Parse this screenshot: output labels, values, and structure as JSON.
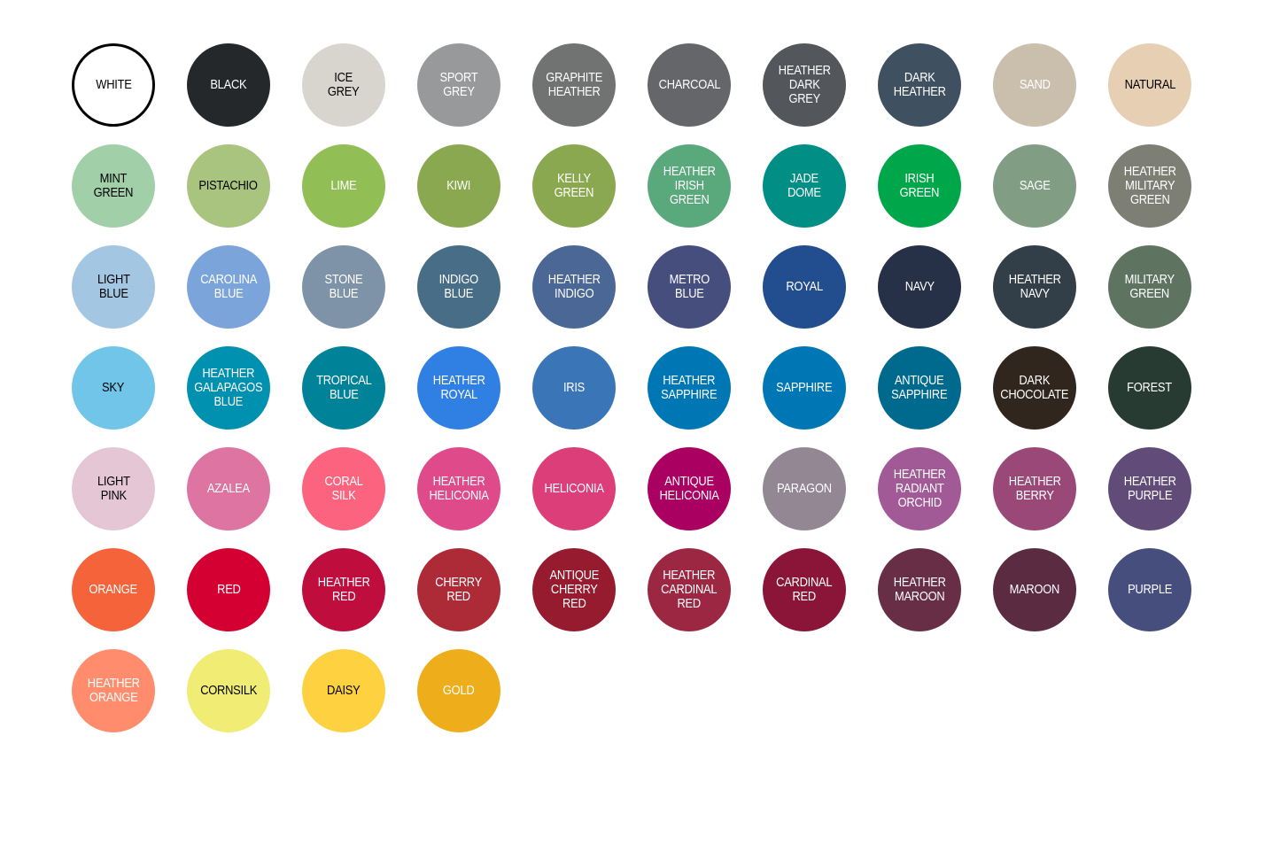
{
  "swatches": [
    {
      "label": "WHITE",
      "color": "#ffffff",
      "text": "#000000",
      "outline": "#000000"
    },
    {
      "label": "BLACK",
      "color": "#25282a",
      "text": "#ffffff"
    },
    {
      "label": "ICE\nGREY",
      "color": "#d8d4ce",
      "text": "#000000"
    },
    {
      "label": "SPORT\nGREY",
      "color": "#97999b",
      "text": "#ffffff"
    },
    {
      "label": "GRAPHITE\nHEATHER",
      "color": "#707372",
      "text": "#ffffff"
    },
    {
      "label": "CHARCOAL",
      "color": "#65666a",
      "text": "#ffffff"
    },
    {
      "label": "HEATHER\nDARK\nGREY",
      "color": "#53565b",
      "text": "#ffffff"
    },
    {
      "label": "DARK\nHEATHER",
      "color": "#3f5060",
      "text": "#ffffff"
    },
    {
      "label": "SAND",
      "color": "#cabfad",
      "text": "#ffffff"
    },
    {
      "label": "NATURAL",
      "color": "#e7cfb4",
      "text": "#000000"
    },
    {
      "label": "MINT\nGREEN",
      "color": "#a0cfa8",
      "text": "#000000"
    },
    {
      "label": "PISTACHIO",
      "color": "#a9c47f",
      "text": "#000000"
    },
    {
      "label": "LIME",
      "color": "#92bf55",
      "text": "#ffffff"
    },
    {
      "label": "KIWI",
      "color": "#89a84f",
      "text": "#ffffff"
    },
    {
      "label": "KELLY\nGREEN",
      "color": "#8aa84f",
      "text": "#ffffff"
    },
    {
      "label": "HEATHER\nIRISH\nGREEN",
      "color": "#5aa97c",
      "text": "#ffffff"
    },
    {
      "label": "JADE\nDOME",
      "color": "#008e85",
      "text": "#ffffff"
    },
    {
      "label": "IRISH\nGREEN",
      "color": "#00a74a",
      "text": "#ffffff"
    },
    {
      "label": "SAGE",
      "color": "#819e84",
      "text": "#ffffff"
    },
    {
      "label": "HEATHER\nMILITARY\nGREEN",
      "color": "#7e7f74",
      "text": "#ffffff"
    },
    {
      "label": "LIGHT\nBLUE",
      "color": "#a3c6e2",
      "text": "#000000"
    },
    {
      "label": "CAROLINA\nBLUE",
      "color": "#7ba4db",
      "text": "#ffffff"
    },
    {
      "label": "STONE\nBLUE",
      "color": "#7e93a8",
      "text": "#ffffff"
    },
    {
      "label": "INDIGO\nBLUE",
      "color": "#486d87",
      "text": "#ffffff"
    },
    {
      "label": "HEATHER\nINDIGO",
      "color": "#4a6795",
      "text": "#ffffff"
    },
    {
      "label": "METRO\nBLUE",
      "color": "#464e7e",
      "text": "#ffffff"
    },
    {
      "label": "ROYAL",
      "color": "#224d8f",
      "text": "#ffffff"
    },
    {
      "label": "NAVY",
      "color": "#263147",
      "text": "#ffffff"
    },
    {
      "label": "HEATHER\nNAVY",
      "color": "#333f48",
      "text": "#ffffff"
    },
    {
      "label": "MILITARY\nGREEN",
      "color": "#5e7461",
      "text": "#ffffff"
    },
    {
      "label": "SKY",
      "color": "#71c5e8",
      "text": "#000000"
    },
    {
      "label": "HEATHER\nGALAPAGOS\nBLUE",
      "color": "#0090b0",
      "text": "#ffffff"
    },
    {
      "label": "TROPICAL\nBLUE",
      "color": "#008299",
      "text": "#ffffff"
    },
    {
      "label": "HEATHER\nROYAL",
      "color": "#307fe2",
      "text": "#ffffff"
    },
    {
      "label": "IRIS",
      "color": "#3975b7",
      "text": "#ffffff"
    },
    {
      "label": "HEATHER\nSAPPHIRE",
      "color": "#0077b5",
      "text": "#ffffff"
    },
    {
      "label": "SAPPHIRE",
      "color": "#0077b5",
      "text": "#ffffff"
    },
    {
      "label": "ANTIQUE\nSAPPHIRE",
      "color": "#006a8e",
      "text": "#ffffff"
    },
    {
      "label": "DARK\nCHOCOLATE",
      "color": "#31261d",
      "text": "#ffffff"
    },
    {
      "label": "FOREST",
      "color": "#273b33",
      "text": "#ffffff"
    },
    {
      "label": "LIGHT\nPINK",
      "color": "#e4c6d4",
      "text": "#000000"
    },
    {
      "label": "AZALEA",
      "color": "#dd74a1",
      "text": "#ffffff"
    },
    {
      "label": "CORAL\nSILK",
      "color": "#fb637e",
      "text": "#ffffff"
    },
    {
      "label": "HEATHER\nHELICONIA",
      "color": "#df4a8a",
      "text": "#ffffff"
    },
    {
      "label": "HELICONIA",
      "color": "#db3e79",
      "text": "#ffffff"
    },
    {
      "label": "ANTIQUE\nHELICONIA",
      "color": "#aa0061",
      "text": "#ffffff"
    },
    {
      "label": "PARAGON",
      "color": "#948794",
      "text": "#ffffff"
    },
    {
      "label": "HEATHER\nRADIANT\nORCHID",
      "color": "#a15a95",
      "text": "#ffffff"
    },
    {
      "label": "HEATHER\nBERRY",
      "color": "#994878",
      "text": "#ffffff"
    },
    {
      "label": "HEATHER\nPURPLE",
      "color": "#614b79",
      "text": "#ffffff"
    },
    {
      "label": "ORANGE",
      "color": "#f4633a",
      "text": "#ffffff"
    },
    {
      "label": "RED",
      "color": "#d50032",
      "text": "#ffffff"
    },
    {
      "label": "HEATHER\nRED",
      "color": "#bf0d3e",
      "text": "#ffffff"
    },
    {
      "label": "CHERRY\nRED",
      "color": "#ac2b37",
      "text": "#ffffff"
    },
    {
      "label": "ANTIQUE\nCHERRY\nRED",
      "color": "#971b2f",
      "text": "#ffffff"
    },
    {
      "label": "HEATHER\nCARDINAL\nRED",
      "color": "#9b2743",
      "text": "#ffffff"
    },
    {
      "label": "CARDINAL\nRED",
      "color": "#8a1538",
      "text": "#ffffff"
    },
    {
      "label": "HEATHER\nMAROON",
      "color": "#672e45",
      "text": "#ffffff"
    },
    {
      "label": "MAROON",
      "color": "#5b2b42",
      "text": "#ffffff"
    },
    {
      "label": "PURPLE",
      "color": "#464e7e",
      "text": "#ffffff"
    },
    {
      "label": "HEATHER\nORANGE",
      "color": "#ff8d6d",
      "text": "#ffffff"
    },
    {
      "label": "CORNSILK",
      "color": "#f0ec74",
      "text": "#000000"
    },
    {
      "label": "DAISY",
      "color": "#fed141",
      "text": "#000000"
    },
    {
      "label": "GOLD",
      "color": "#eead1a",
      "text": "#ffffff"
    }
  ]
}
